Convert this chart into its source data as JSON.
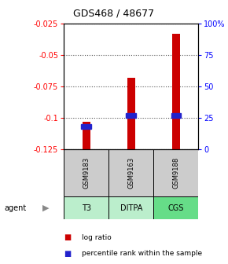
{
  "title": "GDS468 / 48677",
  "samples": [
    "GSM9183",
    "GSM9163",
    "GSM9188"
  ],
  "agents": [
    "T3",
    "DITPA",
    "CGS"
  ],
  "log_ratios": [
    -0.103,
    -0.068,
    -0.033
  ],
  "percentile_ranks": [
    18,
    27,
    27
  ],
  "bar_bottom": -0.125,
  "ylim_left": [
    -0.125,
    -0.025
  ],
  "ylim_right": [
    0,
    100
  ],
  "yticks_left": [
    -0.125,
    -0.1,
    -0.075,
    -0.05,
    -0.025
  ],
  "ytick_labels_left": [
    "-0.125",
    "-0.1",
    "-0.075",
    "-0.05",
    "-0.025"
  ],
  "ytick_labels_right": [
    "0",
    "25",
    "50",
    "75",
    "100%"
  ],
  "bar_color": "#cc0000",
  "blue_color": "#2222cc",
  "agent_bg_color": "#aaeea a",
  "sample_bg_color": "#cccccc",
  "grid_color": "#555555",
  "bar_width": 0.18,
  "agent_label": "agent"
}
